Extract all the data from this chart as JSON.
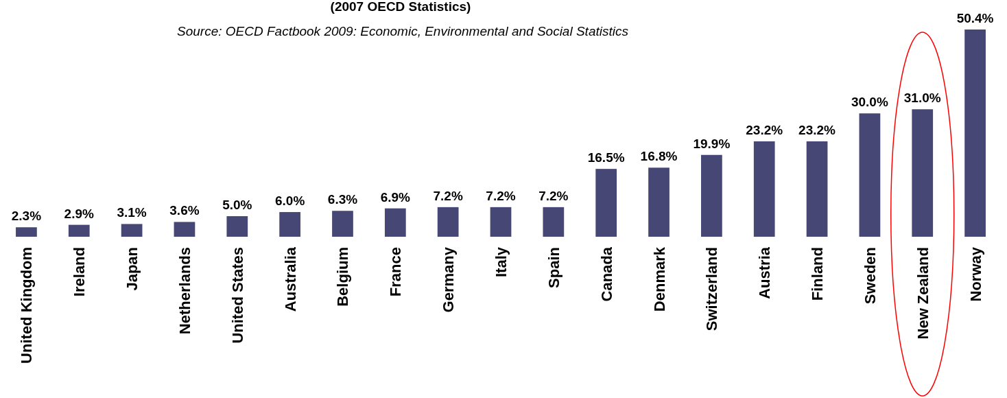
{
  "chart_data": {
    "type": "bar",
    "title": "(2007 OECD Statistics)",
    "annotations": [
      "Source: OECD Factbook 2009: Economic, Environmental and Social Statistics"
    ],
    "categories": [
      "United Kingdom",
      "Ireland",
      "Japan",
      "Netherlands",
      "United States",
      "Australia",
      "Belgium",
      "France",
      "Germany",
      "Italy",
      "Spain",
      "Canada",
      "Denmark",
      "Switzerland",
      "Austria",
      "Finland",
      "Sweden",
      "New Zealand",
      "Norway"
    ],
    "values": [
      2.3,
      2.9,
      3.1,
      3.6,
      5.0,
      6.0,
      6.3,
      6.9,
      7.2,
      7.2,
      7.2,
      16.5,
      16.8,
      19.9,
      23.2,
      23.2,
      30.0,
      31.0,
      50.4
    ],
    "value_labels": [
      "2.3%",
      "2.9%",
      "3.1%",
      "3.6%",
      "5.0%",
      "6.0%",
      "6.3%",
      "6.9%",
      "7.2%",
      "7.2%",
      "7.2%",
      "16.5%",
      "16.8%",
      "19.9%",
      "23.2%",
      "23.2%",
      "30.0%",
      "31.0%",
      "50.4%"
    ],
    "color": "#474775"
  }
}
